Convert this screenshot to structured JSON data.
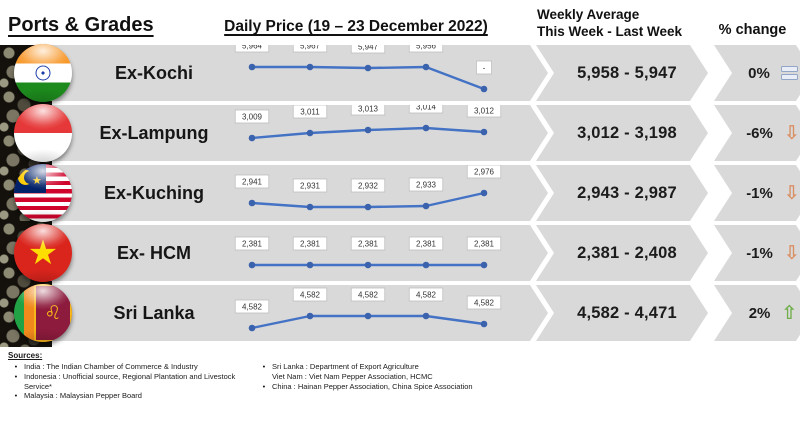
{
  "header": {
    "ports_grades": "Ports & Grades",
    "daily_price": "Daily Price (19 – 23 December 2022)",
    "weekly_avg_line1": "Weekly Average",
    "weekly_avg_line2": "This Week - Last Week",
    "pct_change": "% change"
  },
  "colors": {
    "band": "#d9d9d9",
    "chart_line": "#4472c4",
    "up_arrow": "#6fae49",
    "down_arrow": "#d98e62",
    "flat_icon": "#93a5c7"
  },
  "rows": [
    {
      "port": "Ex-Kochi",
      "flag": "india",
      "daily": {
        "labels": [
          "5,964",
          "5,967",
          "5,947",
          "5,956",
          "-"
        ],
        "y": [
          22,
          22,
          23,
          22,
          44
        ]
      },
      "weekly": "5,958 - 5,947",
      "change": "0%",
      "trend": "flat"
    },
    {
      "port": "Ex-Lampung",
      "flag": "indonesia",
      "daily": {
        "labels": [
          "3,009",
          "3,011",
          "3,013",
          "3,014",
          "3,012"
        ],
        "y": [
          33,
          28,
          25,
          23,
          27
        ]
      },
      "weekly": "3,012 - 3,198",
      "change": "-6%",
      "trend": "down"
    },
    {
      "port": "Ex-Kuching",
      "flag": "malaysia",
      "daily": {
        "labels": [
          "2,941",
          "2,931",
          "2,932",
          "2,933",
          "2,976"
        ],
        "y": [
          38,
          42,
          42,
          41,
          28
        ]
      },
      "weekly": "2,943 - 2,987",
      "change": "-1%",
      "trend": "down"
    },
    {
      "port": "Ex- HCM",
      "flag": "vietnam",
      "daily": {
        "labels": [
          "2,381",
          "2,381",
          "2,381",
          "2,381",
          "2,381"
        ],
        "y": [
          40,
          40,
          40,
          40,
          40
        ]
      },
      "weekly": "2,381 - 2,408",
      "change": "-1%",
      "trend": "down"
    },
    {
      "port": "Sri Lanka",
      "flag": "srilanka",
      "daily": {
        "labels": [
          "4,582",
          "4,582",
          "4,582",
          "4,582",
          "4,582"
        ],
        "y": [
          43,
          31,
          31,
          31,
          39
        ]
      },
      "weekly": "4,582 - 4,471",
      "change": "2%",
      "trend": "up"
    }
  ],
  "chart_data": {
    "type": "line",
    "title": "Daily Price (19 – 23 December 2022)",
    "x": [
      1,
      2,
      3,
      4,
      5
    ],
    "series": [
      {
        "name": "Ex-Kochi",
        "values": [
          5964,
          5967,
          5947,
          5956,
          null
        ]
      },
      {
        "name": "Ex-Lampung",
        "values": [
          3009,
          3011,
          3013,
          3014,
          3012
        ]
      },
      {
        "name": "Ex-Kuching",
        "values": [
          2941,
          2931,
          2932,
          2933,
          2976
        ]
      },
      {
        "name": "Ex- HCM",
        "values": [
          2381,
          2381,
          2381,
          2381,
          2381
        ]
      },
      {
        "name": "Sri Lanka",
        "values": [
          4582,
          4582,
          4582,
          4582,
          4582
        ]
      }
    ],
    "weekly_average": [
      {
        "port": "Ex-Kochi",
        "this_week": 5958,
        "last_week": 5947,
        "pct_change": "0%"
      },
      {
        "port": "Ex-Lampung",
        "this_week": 3012,
        "last_week": 3198,
        "pct_change": "-6%"
      },
      {
        "port": "Ex-Kuching",
        "this_week": 2943,
        "last_week": 2987,
        "pct_change": "-1%"
      },
      {
        "port": "Ex- HCM",
        "this_week": 2381,
        "last_week": 2408,
        "pct_change": "-1%"
      },
      {
        "port": "Sri Lanka",
        "this_week": 4582,
        "last_week": 4471,
        "pct_change": "2%"
      }
    ]
  },
  "sources": {
    "title": "Sources:",
    "left": [
      "India : The Indian Chamber of Commerce & Industry",
      "Indonesia : Unofficial source, Regional Plantation and Livestock Service*",
      "Malaysia : Malaysian Pepper Board"
    ],
    "right": [
      "Sri Lanka : Department of Export Agriculture",
      "Viet Nam : Viet Nam Pepper Association, HCMC",
      "China : Hainan Pepper Association, China Spice Association"
    ],
    "right_bullets": [
      true,
      false,
      true
    ]
  }
}
